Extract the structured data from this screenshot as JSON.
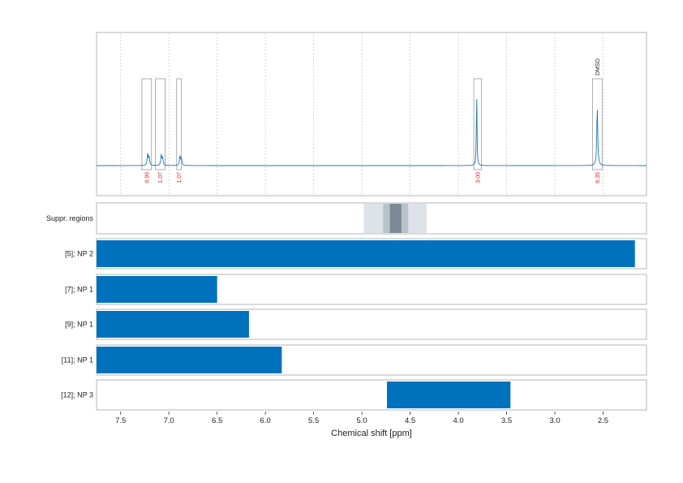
{
  "chart_data": {
    "type": "nmr_spectrum_with_range_bars",
    "xlabel": "Chemical shift [ppm]",
    "xlim": [
      7.75,
      2.05
    ],
    "x_reversed": true,
    "x_ticks": [
      7.5,
      7.0,
      6.5,
      6.0,
      5.5,
      5.0,
      4.5,
      4.0,
      3.5,
      3.0,
      2.5
    ],
    "x_tick_labels": [
      "7.5",
      "7.0",
      "6.5",
      "6.0",
      "5.5",
      "5.0",
      "4.5",
      "4.0",
      "3.5",
      "3.0",
      "2.5"
    ],
    "grid": true,
    "colors": {
      "spectrum": "#1f77b4",
      "bar": "#0072bd",
      "integration_label": "#e8212b",
      "frame": "#b4b4b4"
    },
    "spectrum": {
      "baseline": 0.0,
      "peaks": [
        {
          "ppm": 7.22,
          "height": 0.12,
          "width": 0.006
        },
        {
          "ppm": 7.205,
          "height": 0.09,
          "width": 0.006
        },
        {
          "ppm": 7.08,
          "height": 0.11,
          "width": 0.006
        },
        {
          "ppm": 7.065,
          "height": 0.08,
          "width": 0.006
        },
        {
          "ppm": 6.885,
          "height": 0.1,
          "width": 0.006
        },
        {
          "ppm": 6.87,
          "height": 0.07,
          "width": 0.006
        },
        {
          "ppm": 3.81,
          "height": 0.75,
          "width": 0.004
        },
        {
          "ppm": 2.56,
          "height": 0.6,
          "width": 0.006
        }
      ],
      "integration_regions": [
        {
          "from": 7.28,
          "to": 7.18,
          "label": "0.99"
        },
        {
          "from": 7.14,
          "to": 7.04,
          "label": "1.07"
        },
        {
          "from": 6.92,
          "to": 6.87,
          "label": "1.07"
        },
        {
          "from": 3.84,
          "to": 3.76,
          "label": "3.00"
        },
        {
          "from": 2.61,
          "to": 2.51,
          "label": "6.35",
          "annotation": "DMSO"
        }
      ]
    },
    "suppressed_regions": {
      "label": "Suppr. regions",
      "bands": [
        {
          "from": 4.98,
          "to": 4.33,
          "shade": "#dde3e8"
        },
        {
          "from": 4.78,
          "to": 4.52,
          "shade": "#b7c2cb"
        },
        {
          "from": 4.71,
          "to": 4.59,
          "shade": "#7b8a96"
        }
      ]
    },
    "range_bars": [
      {
        "label": "[5]; NP 2",
        "from": 7.75,
        "to": 2.17
      },
      {
        "label": "[7]; NP 1",
        "from": 7.75,
        "to": 6.5
      },
      {
        "label": "[9]; NP 1",
        "from": 7.75,
        "to": 6.17
      },
      {
        "label": "[11]; NP 1",
        "from": 7.75,
        "to": 5.83
      },
      {
        "label": "[12]; NP 3",
        "from": 4.74,
        "to": 3.46
      }
    ]
  }
}
